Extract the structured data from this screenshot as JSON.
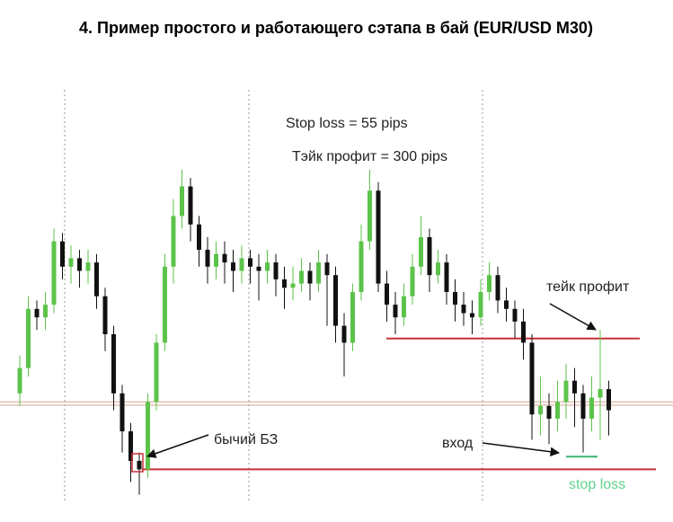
{
  "chart_data": {
    "type": "candlestick",
    "title": "4. Пример простого и работающего сэтапа в бай (EUR/USD M30)",
    "annotations": [
      "Stop loss = 55 pips",
      "Тэйк профит = 300 pips",
      "тейк профит",
      "бычий БЗ",
      "вход",
      "stop loss"
    ],
    "up_color": "#5cc34a",
    "down_color": "#111111",
    "ylim": [
      0,
      100
    ],
    "ohlc": [
      [
        26,
        35,
        23,
        32
      ],
      [
        32,
        49,
        30,
        46
      ],
      [
        46,
        48,
        41,
        44
      ],
      [
        44,
        50,
        41,
        47
      ],
      [
        47,
        65,
        45,
        62
      ],
      [
        62,
        64,
        53,
        56
      ],
      [
        56,
        61,
        52,
        58
      ],
      [
        58,
        60,
        51,
        55
      ],
      [
        55,
        60,
        52,
        57
      ],
      [
        57,
        59,
        46,
        49
      ],
      [
        49,
        51,
        36,
        40
      ],
      [
        40,
        42,
        22,
        26
      ],
      [
        26,
        28,
        12,
        17
      ],
      [
        17,
        19,
        5,
        10
      ],
      [
        10,
        12,
        2,
        8
      ],
      [
        8,
        26,
        6,
        24
      ],
      [
        24,
        40,
        22,
        38
      ],
      [
        38,
        59,
        36,
        56
      ],
      [
        56,
        72,
        52,
        68
      ],
      [
        68,
        79,
        65,
        75
      ],
      [
        75,
        77,
        62,
        66
      ],
      [
        66,
        68,
        56,
        60
      ],
      [
        60,
        63,
        52,
        56
      ],
      [
        56,
        62,
        53,
        59
      ],
      [
        59,
        62,
        52,
        57
      ],
      [
        57,
        60,
        50,
        55
      ],
      [
        55,
        61,
        52,
        58
      ],
      [
        58,
        60,
        52,
        56
      ],
      [
        56,
        59,
        48,
        55
      ],
      [
        55,
        60,
        52,
        57
      ],
      [
        57,
        59,
        49,
        53
      ],
      [
        53,
        56,
        46,
        51
      ],
      [
        51,
        56,
        48,
        52
      ],
      [
        52,
        58,
        50,
        55
      ],
      [
        55,
        57,
        48,
        52
      ],
      [
        52,
        60,
        50,
        57
      ],
      [
        57,
        59,
        42,
        54
      ],
      [
        54,
        56,
        38,
        42
      ],
      [
        42,
        45,
        30,
        38
      ],
      [
        38,
        52,
        36,
        50
      ],
      [
        50,
        66,
        48,
        62
      ],
      [
        62,
        79,
        60,
        74
      ],
      [
        74,
        76,
        50,
        52
      ],
      [
        52,
        55,
        43,
        47
      ],
      [
        47,
        50,
        40,
        44
      ],
      [
        44,
        52,
        42,
        49
      ],
      [
        49,
        59,
        47,
        56
      ],
      [
        56,
        68,
        54,
        63
      ],
      [
        63,
        65,
        50,
        54
      ],
      [
        54,
        60,
        52,
        57
      ],
      [
        57,
        59,
        47,
        50
      ],
      [
        50,
        53,
        43,
        47
      ],
      [
        47,
        50,
        42,
        45
      ],
      [
        45,
        48,
        40,
        44
      ],
      [
        44,
        53,
        42,
        50
      ],
      [
        50,
        57,
        48,
        54
      ],
      [
        54,
        56,
        45,
        48
      ],
      [
        48,
        51,
        43,
        46
      ],
      [
        46,
        48,
        39,
        43
      ],
      [
        43,
        46,
        34,
        38
      ],
      [
        38,
        40,
        15,
        21
      ],
      [
        21,
        30,
        16,
        23
      ],
      [
        23,
        26,
        14,
        20
      ],
      [
        20,
        29,
        17,
        24
      ],
      [
        24,
        33,
        20,
        29
      ],
      [
        29,
        32,
        18,
        26
      ],
      [
        26,
        28,
        12,
        20
      ],
      [
        20,
        30,
        17,
        25
      ],
      [
        25,
        41,
        15,
        27
      ],
      [
        27,
        29,
        16,
        22
      ]
    ],
    "levels": [
      {
        "value": 39,
        "color": "#c8323a"
      },
      {
        "value": 8,
        "color": "#c8323a"
      },
      {
        "value": 24,
        "color": "#d9a58e"
      },
      {
        "value": 23.2,
        "color": "#d9a58e"
      },
      {
        "value": 11,
        "color": "#3cb371"
      }
    ]
  }
}
